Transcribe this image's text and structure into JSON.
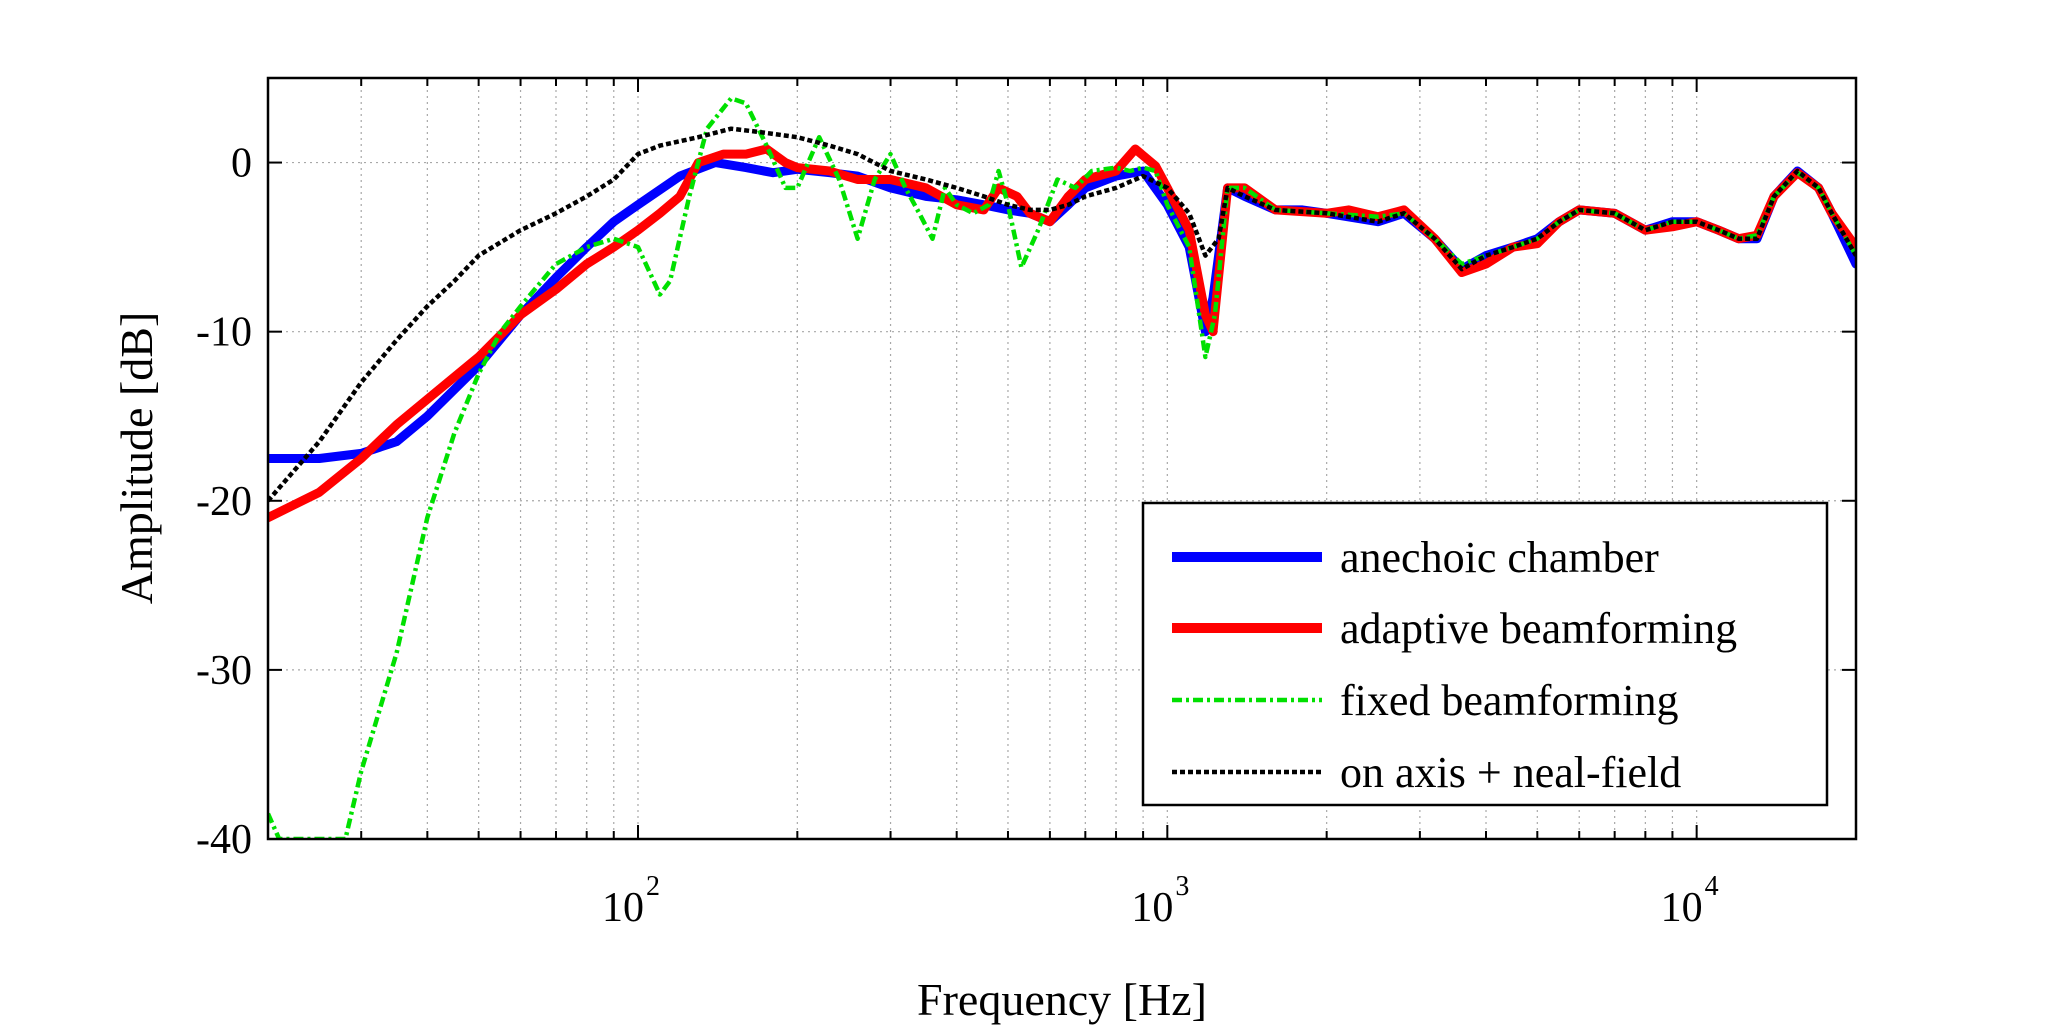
{
  "chart_data": {
    "type": "line",
    "title": "",
    "xlabel": "Frequency [Hz]",
    "ylabel": "Amplitude [dB]",
    "xscale": "log",
    "xlim": [
      20,
      20000
    ],
    "ylim": [
      -40,
      5
    ],
    "yticks": [
      0,
      -10,
      -20,
      -30,
      -40
    ],
    "ytick_labels": [
      "0",
      "-10",
      "-20",
      "-30",
      "-40"
    ],
    "xticks": [
      {
        "base": "10",
        "exp": "2",
        "value": 100
      },
      {
        "base": "10",
        "exp": "3",
        "value": 1000
      },
      {
        "base": "10",
        "exp": "4",
        "value": 10000
      }
    ],
    "grid": true,
    "legend_position": "bottom-right",
    "series": [
      {
        "name": "anechoic chamber",
        "color": "#0000ff",
        "style": "solid-thick",
        "points": [
          [
            20,
            -17.5
          ],
          [
            25,
            -17.5
          ],
          [
            30,
            -17.2
          ],
          [
            35,
            -16.5
          ],
          [
            40,
            -15
          ],
          [
            50,
            -12
          ],
          [
            60,
            -9
          ],
          [
            70,
            -6.8
          ],
          [
            80,
            -5
          ],
          [
            90,
            -3.5
          ],
          [
            100,
            -2.5
          ],
          [
            120,
            -0.8
          ],
          [
            140,
            0
          ],
          [
            160,
            -0.3
          ],
          [
            180,
            -0.6
          ],
          [
            200,
            -0.4
          ],
          [
            230,
            -0.6
          ],
          [
            260,
            -0.8
          ],
          [
            300,
            -1.5
          ],
          [
            350,
            -2
          ],
          [
            400,
            -2.2
          ],
          [
            450,
            -2.5
          ],
          [
            500,
            -2.8
          ],
          [
            550,
            -3
          ],
          [
            600,
            -3.5
          ],
          [
            650,
            -2.5
          ],
          [
            700,
            -1.5
          ],
          [
            800,
            -0.8
          ],
          [
            900,
            -0.5
          ],
          [
            1000,
            -2.5
          ],
          [
            1100,
            -5
          ],
          [
            1180,
            -10
          ],
          [
            1220,
            -8
          ],
          [
            1300,
            -1.5
          ],
          [
            1400,
            -2
          ],
          [
            1600,
            -2.8
          ],
          [
            1800,
            -2.8
          ],
          [
            2000,
            -3
          ],
          [
            2500,
            -3.5
          ],
          [
            2800,
            -3
          ],
          [
            3200,
            -4.5
          ],
          [
            3600,
            -6.3
          ],
          [
            4000,
            -5.5
          ],
          [
            4500,
            -5
          ],
          [
            5000,
            -4.5
          ],
          [
            5500,
            -3.5
          ],
          [
            6000,
            -2.8
          ],
          [
            7000,
            -3
          ],
          [
            8000,
            -4
          ],
          [
            9000,
            -3.5
          ],
          [
            10000,
            -3.5
          ],
          [
            11000,
            -4
          ],
          [
            12000,
            -4.5
          ],
          [
            13000,
            -4.5
          ],
          [
            14000,
            -2
          ],
          [
            15500,
            -0.5
          ],
          [
            17000,
            -1.5
          ],
          [
            18000,
            -3
          ],
          [
            20000,
            -6
          ]
        ]
      },
      {
        "name": "adaptive beamforming",
        "color": "#ff0000",
        "style": "solid-thick",
        "points": [
          [
            20,
            -21
          ],
          [
            25,
            -19.5
          ],
          [
            30,
            -17.5
          ],
          [
            35,
            -15.5
          ],
          [
            40,
            -14
          ],
          [
            50,
            -11.5
          ],
          [
            60,
            -9
          ],
          [
            70,
            -7.5
          ],
          [
            80,
            -6
          ],
          [
            90,
            -5
          ],
          [
            100,
            -4
          ],
          [
            110,
            -3
          ],
          [
            120,
            -2
          ],
          [
            130,
            0
          ],
          [
            145,
            0.5
          ],
          [
            160,
            0.5
          ],
          [
            175,
            0.8
          ],
          [
            190,
            0
          ],
          [
            200,
            -0.3
          ],
          [
            230,
            -0.5
          ],
          [
            260,
            -1
          ],
          [
            300,
            -1
          ],
          [
            350,
            -1.5
          ],
          [
            400,
            -2.5
          ],
          [
            450,
            -2.8
          ],
          [
            480,
            -1.5
          ],
          [
            520,
            -2
          ],
          [
            550,
            -3
          ],
          [
            600,
            -3.5
          ],
          [
            650,
            -2
          ],
          [
            700,
            -1
          ],
          [
            800,
            -0.5
          ],
          [
            870,
            0.8
          ],
          [
            950,
            -0.2
          ],
          [
            1000,
            -1.5
          ],
          [
            1100,
            -4
          ],
          [
            1180,
            -9
          ],
          [
            1220,
            -10
          ],
          [
            1300,
            -1.5
          ],
          [
            1400,
            -1.5
          ],
          [
            1600,
            -2.8
          ],
          [
            2000,
            -3
          ],
          [
            2200,
            -2.8
          ],
          [
            2500,
            -3.2
          ],
          [
            2800,
            -2.8
          ],
          [
            3200,
            -4.5
          ],
          [
            3600,
            -6.5
          ],
          [
            4000,
            -6
          ],
          [
            4500,
            -5
          ],
          [
            5000,
            -4.8
          ],
          [
            5500,
            -3.5
          ],
          [
            6000,
            -2.8
          ],
          [
            7000,
            -3
          ],
          [
            8000,
            -4
          ],
          [
            9000,
            -3.8
          ],
          [
            10000,
            -3.5
          ],
          [
            11000,
            -4
          ],
          [
            12000,
            -4.5
          ],
          [
            13000,
            -4.3
          ],
          [
            14000,
            -2
          ],
          [
            15500,
            -0.6
          ],
          [
            17000,
            -1.5
          ],
          [
            18000,
            -3
          ],
          [
            20000,
            -5
          ]
        ]
      },
      {
        "name": "fixed beamforming",
        "color": "#00e000",
        "style": "dashdot",
        "points": [
          [
            20,
            -38.5
          ],
          [
            21,
            -40
          ],
          [
            28,
            -40
          ],
          [
            30,
            -36
          ],
          [
            35,
            -29
          ],
          [
            40,
            -21
          ],
          [
            45,
            -16
          ],
          [
            50,
            -12.5
          ],
          [
            55,
            -10
          ],
          [
            60,
            -8.5
          ],
          [
            70,
            -6
          ],
          [
            80,
            -5
          ],
          [
            90,
            -4.5
          ],
          [
            100,
            -5
          ],
          [
            110,
            -7.8
          ],
          [
            115,
            -7
          ],
          [
            125,
            -2
          ],
          [
            135,
            2
          ],
          [
            150,
            3.8
          ],
          [
            160,
            3.5
          ],
          [
            175,
            1
          ],
          [
            190,
            -1.5
          ],
          [
            200,
            -1.5
          ],
          [
            220,
            1.5
          ],
          [
            240,
            -1
          ],
          [
            260,
            -4.5
          ],
          [
            280,
            -1
          ],
          [
            300,
            0.5
          ],
          [
            320,
            -1.5
          ],
          [
            340,
            -3
          ],
          [
            360,
            -4.5
          ],
          [
            380,
            -1.5
          ],
          [
            400,
            -2.5
          ],
          [
            430,
            -3
          ],
          [
            460,
            -2.5
          ],
          [
            480,
            -0.5
          ],
          [
            500,
            -2.5
          ],
          [
            530,
            -6.2
          ],
          [
            570,
            -4
          ],
          [
            620,
            -1
          ],
          [
            670,
            -1.5
          ],
          [
            720,
            -0.5
          ],
          [
            800,
            -0.3
          ],
          [
            850,
            -0.5
          ],
          [
            900,
            -0.3
          ],
          [
            950,
            -0.5
          ],
          [
            1000,
            -2.5
          ],
          [
            1100,
            -5
          ],
          [
            1180,
            -11.5
          ],
          [
            1230,
            -9
          ],
          [
            1300,
            -1.5
          ],
          [
            1400,
            -1.5
          ],
          [
            1600,
            -2.8
          ],
          [
            2000,
            -3
          ],
          [
            2500,
            -3.2
          ],
          [
            2800,
            -3
          ],
          [
            3200,
            -4.5
          ],
          [
            3600,
            -6
          ],
          [
            4000,
            -5.5
          ],
          [
            4500,
            -5
          ],
          [
            5000,
            -4.5
          ],
          [
            5500,
            -3.5
          ],
          [
            6000,
            -2.8
          ],
          [
            7000,
            -3
          ],
          [
            8000,
            -4
          ],
          [
            9000,
            -3.5
          ],
          [
            10000,
            -3.5
          ],
          [
            11000,
            -4
          ],
          [
            12000,
            -4.5
          ],
          [
            13000,
            -4.3
          ],
          [
            14000,
            -2
          ],
          [
            15500,
            -0.6
          ],
          [
            17000,
            -1.5
          ],
          [
            18000,
            -3
          ],
          [
            20000,
            -5.5
          ]
        ]
      },
      {
        "name": "on axis + neal-field",
        "color": "#000000",
        "style": "dotted",
        "points": [
          [
            20,
            -20
          ],
          [
            25,
            -16.5
          ],
          [
            30,
            -13
          ],
          [
            35,
            -10.5
          ],
          [
            40,
            -8.5
          ],
          [
            45,
            -7
          ],
          [
            50,
            -5.5
          ],
          [
            60,
            -4
          ],
          [
            70,
            -3
          ],
          [
            80,
            -2
          ],
          [
            90,
            -1
          ],
          [
            100,
            0.5
          ],
          [
            110,
            1
          ],
          [
            130,
            1.5
          ],
          [
            150,
            2
          ],
          [
            170,
            1.8
          ],
          [
            200,
            1.5
          ],
          [
            230,
            1
          ],
          [
            260,
            0.5
          ],
          [
            300,
            -0.5
          ],
          [
            350,
            -1
          ],
          [
            400,
            -1.5
          ],
          [
            450,
            -2
          ],
          [
            500,
            -2.5
          ],
          [
            550,
            -2.8
          ],
          [
            600,
            -2.8
          ],
          [
            650,
            -2.5
          ],
          [
            700,
            -2
          ],
          [
            800,
            -1.5
          ],
          [
            900,
            -0.8
          ],
          [
            1000,
            -1.5
          ],
          [
            1100,
            -3
          ],
          [
            1180,
            -5.5
          ],
          [
            1250,
            -4.5
          ],
          [
            1300,
            -1.5
          ],
          [
            1400,
            -2
          ],
          [
            1600,
            -2.8
          ],
          [
            2000,
            -3
          ],
          [
            2500,
            -3.5
          ],
          [
            2800,
            -3
          ],
          [
            3200,
            -4.5
          ],
          [
            3600,
            -6.3
          ],
          [
            4000,
            -5.5
          ],
          [
            4500,
            -5
          ],
          [
            5000,
            -4.5
          ],
          [
            5500,
            -3.5
          ],
          [
            6000,
            -2.8
          ],
          [
            7000,
            -3
          ],
          [
            8000,
            -4
          ],
          [
            9000,
            -3.5
          ],
          [
            10000,
            -3.5
          ],
          [
            11000,
            -4
          ],
          [
            12000,
            -4.5
          ],
          [
            13000,
            -4.5
          ],
          [
            14000,
            -2
          ],
          [
            15500,
            -0.5
          ],
          [
            17000,
            -1.5
          ],
          [
            18000,
            -3
          ],
          [
            20000,
            -5.5
          ]
        ]
      }
    ]
  }
}
